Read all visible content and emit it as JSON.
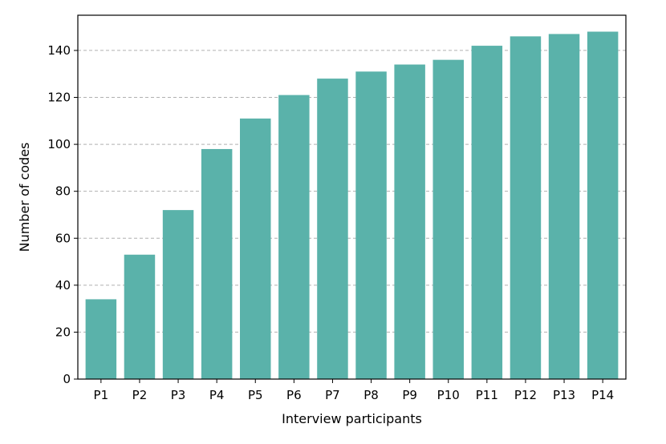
{
  "chart_data": {
    "type": "bar",
    "title": "",
    "xlabel": "Interview participants",
    "ylabel": "Number of codes",
    "categories": [
      "P1",
      "P2",
      "P3",
      "P4",
      "P5",
      "P6",
      "P7",
      "P8",
      "P9",
      "P10",
      "P11",
      "P12",
      "P13",
      "P14"
    ],
    "values": [
      34,
      53,
      72,
      98,
      111,
      121,
      128,
      131,
      134,
      136,
      142,
      146,
      147,
      148
    ],
    "ylim": [
      0,
      155
    ],
    "yticks": [
      0,
      20,
      40,
      60,
      80,
      100,
      120,
      140
    ],
    "grid": "horizontal dashed",
    "bar_color": "#5ab2aa",
    "grid_color": "#b0b0b0"
  }
}
